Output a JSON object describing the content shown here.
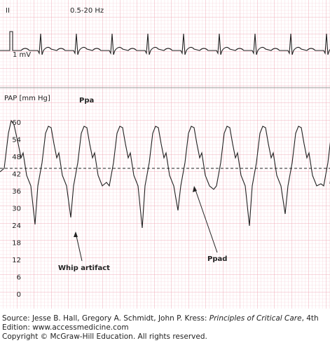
{
  "ecg": {
    "lead": "II",
    "filter": "0.5-20 Hz",
    "calibration": "1 mV"
  },
  "pap": {
    "axis_title": "PAP [mm Hg]",
    "ticks": [
      "60",
      "54",
      "48",
      "42",
      "36",
      "30",
      "24",
      "18",
      "12",
      "6",
      "0"
    ],
    "annotations": {
      "ppa": "Ppa",
      "whip": "Whip artifact",
      "ppad": "Ppad"
    }
  },
  "caption": {
    "prefix": "Source: Jesse B. Hall, Gregory A. Schmidt, John P. Kress: ",
    "book": "Principles of Critical Care",
    "suffix": ", 4th Edition: www.accessmedicine.com",
    "copyright": "Copyright © McGraw-Hill Education. All rights reserved."
  }
}
